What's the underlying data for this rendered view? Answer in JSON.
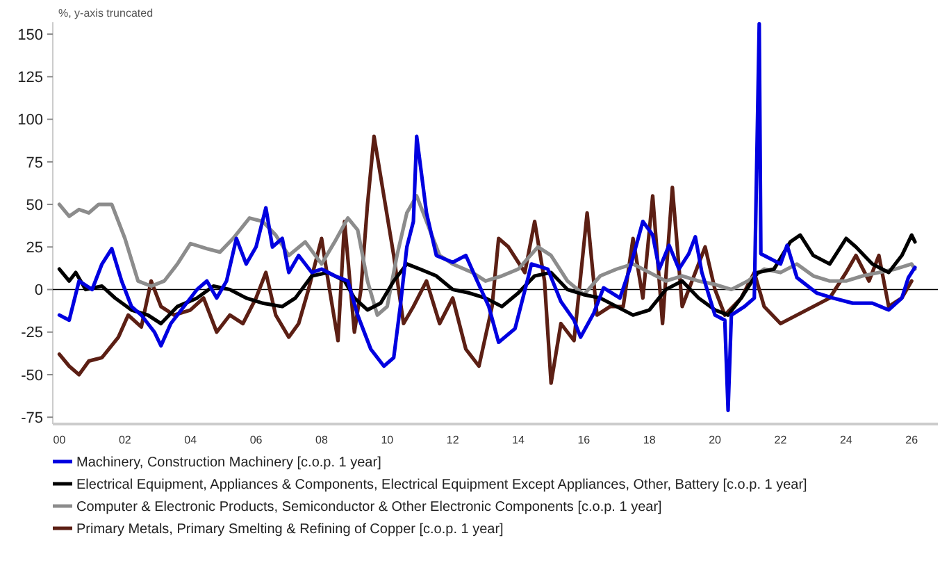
{
  "chart_data": {
    "type": "line",
    "ylabel": "%, y-axis truncated",
    "xlim": [
      1999.8,
      2026.8
    ],
    "ylim": [
      -79,
      157
    ],
    "xticks": [
      {
        "value": 2000,
        "label": "00"
      },
      {
        "value": 2002,
        "label": "02"
      },
      {
        "value": 2004,
        "label": "04"
      },
      {
        "value": 2006,
        "label": "06"
      },
      {
        "value": 2008,
        "label": "08"
      },
      {
        "value": 2010,
        "label": "10"
      },
      {
        "value": 2012,
        "label": "12"
      },
      {
        "value": 2014,
        "label": "14"
      },
      {
        "value": 2016,
        "label": "16"
      },
      {
        "value": 2018,
        "label": "18"
      },
      {
        "value": 2020,
        "label": "20"
      },
      {
        "value": 2022,
        "label": "22"
      },
      {
        "value": 2024,
        "label": "24"
      },
      {
        "value": 2026,
        "label": "26"
      }
    ],
    "yticks": [
      -75,
      -50,
      -25,
      0,
      25,
      50,
      75,
      100,
      125,
      150
    ],
    "grid": false,
    "legend": "bottom",
    "line_style": "solid",
    "ref_lines": [
      {
        "axis": "y",
        "value": 0,
        "color": "#000000"
      }
    ],
    "series": [
      {
        "name": "Primary Metals, Primary Smelting & Refining of Copper [c.o.p. 1 year]",
        "color": "#5c1f14",
        "x": [
          2000,
          2000.3,
          2000.6,
          2000.9,
          2001.3,
          2001.8,
          2002.1,
          2002.5,
          2002.8,
          2003.1,
          2003.5,
          2004,
          2004.4,
          2004.8,
          2005.2,
          2005.6,
          2006,
          2006.3,
          2006.6,
          2007,
          2007.3,
          2007.6,
          2008,
          2008.2,
          2008.5,
          2008.7,
          2009,
          2009.2,
          2009.4,
          2009.6,
          2009.9,
          2010.2,
          2010.5,
          2010.8,
          2011.2,
          2011.6,
          2012,
          2012.4,
          2012.8,
          2013.2,
          2013.4,
          2013.7,
          2014.2,
          2014.5,
          2014.8,
          2015,
          2015.3,
          2015.7,
          2016.1,
          2016.4,
          2016.8,
          2017.2,
          2017.5,
          2017.8,
          2018.1,
          2018.4,
          2018.7,
          2019,
          2019.3,
          2019.7,
          2020,
          2020.3,
          2020.8,
          2021.2,
          2021.5,
          2022,
          2022.5,
          2023,
          2023.5,
          2024,
          2024.3,
          2024.7,
          2025,
          2025.3,
          2025.7,
          2026
        ],
        "values": [
          -38,
          -45,
          -50,
          -42,
          -40,
          -28,
          -15,
          -22,
          5,
          -10,
          -15,
          -12,
          -5,
          -25,
          -15,
          -20,
          -5,
          10,
          -15,
          -28,
          -20,
          0,
          30,
          5,
          -30,
          40,
          -25,
          0,
          50,
          90,
          55,
          20,
          -20,
          -10,
          5,
          -20,
          -5,
          -35,
          -45,
          -10,
          30,
          25,
          10,
          40,
          5,
          -55,
          -20,
          -30,
          45,
          -15,
          -10,
          -10,
          30,
          -5,
          55,
          -20,
          60,
          -10,
          5,
          25,
          0,
          -15,
          -5,
          10,
          -10,
          -20,
          -15,
          -10,
          -5,
          10,
          20,
          5,
          20,
          -10,
          -5,
          5
        ]
      },
      {
        "name": "Computer & Electronic Products, Semiconductor & Other Electronic Components [c.o.p. 1 year]",
        "color": "#8c8c8c",
        "x": [
          2000,
          2000.3,
          2000.6,
          2000.9,
          2001.2,
          2001.6,
          2002,
          2002.4,
          2002.8,
          2003.2,
          2003.6,
          2004,
          2004.5,
          2004.9,
          2005.3,
          2005.8,
          2006.2,
          2006.6,
          2007,
          2007.5,
          2008,
          2008.4,
          2008.8,
          2009.1,
          2009.4,
          2009.7,
          2010,
          2010.3,
          2010.6,
          2010.9,
          2011.2,
          2011.6,
          2012,
          2012.6,
          2013,
          2013.5,
          2014,
          2014.6,
          2015,
          2015.5,
          2016,
          2016.5,
          2017,
          2017.5,
          2018,
          2018.5,
          2019,
          2019.5,
          2020,
          2020.5,
          2021,
          2021.5,
          2022,
          2022.5,
          2023,
          2023.5,
          2024,
          2024.5,
          2025,
          2025.5,
          2026,
          2026.1
        ],
        "values": [
          50,
          43,
          47,
          45,
          50,
          50,
          30,
          5,
          2,
          5,
          15,
          27,
          24,
          22,
          30,
          42,
          40,
          32,
          20,
          28,
          15,
          28,
          42,
          35,
          5,
          -15,
          -10,
          20,
          45,
          55,
          40,
          20,
          15,
          10,
          5,
          8,
          12,
          25,
          20,
          5,
          -3,
          8,
          12,
          15,
          10,
          5,
          8,
          5,
          3,
          0,
          5,
          12,
          10,
          15,
          8,
          5,
          5,
          8,
          10,
          12,
          15,
          12
        ]
      },
      {
        "name": "Electrical Equipment, Appliances & Components, Electrical Equipment Except Appliances, Other, Battery [c.o.p. 1 year]",
        "color": "#000000",
        "x": [
          2000,
          2000.3,
          2000.5,
          2000.8,
          2001.3,
          2001.7,
          2002.2,
          2002.7,
          2003.1,
          2003.6,
          2004.2,
          2004.7,
          2005.2,
          2005.7,
          2006.2,
          2006.8,
          2007.2,
          2007.7,
          2008.2,
          2008.7,
          2009,
          2009.4,
          2009.8,
          2010.2,
          2010.6,
          2011,
          2011.5,
          2012,
          2012.5,
          2013,
          2013.5,
          2014,
          2014.5,
          2015,
          2015.5,
          2016,
          2016.5,
          2017,
          2017.5,
          2018,
          2018.5,
          2019,
          2019.5,
          2020,
          2020.4,
          2020.8,
          2021.3,
          2021.8,
          2022.3,
          2022.6,
          2023,
          2023.5,
          2024,
          2024.3,
          2024.8,
          2025.3,
          2025.7,
          2026,
          2026.1
        ],
        "values": [
          12,
          5,
          10,
          0,
          2,
          -5,
          -12,
          -15,
          -20,
          -10,
          -5,
          2,
          0,
          -5,
          -8,
          -10,
          -5,
          8,
          10,
          5,
          -5,
          -12,
          -8,
          5,
          15,
          12,
          8,
          0,
          -2,
          -5,
          -10,
          -2,
          8,
          10,
          0,
          -3,
          -5,
          -10,
          -15,
          -12,
          0,
          5,
          -5,
          -12,
          -15,
          -5,
          10,
          12,
          28,
          32,
          20,
          15,
          30,
          25,
          15,
          10,
          20,
          32,
          28
        ]
      },
      {
        "name": "Machinery, Construction Machinery [c.o.p. 1 year]",
        "color": "#0000e0",
        "x": [
          2000,
          2000.3,
          2000.6,
          2001,
          2001.3,
          2001.6,
          2001.9,
          2002.2,
          2002.5,
          2002.9,
          2003.1,
          2003.4,
          2003.8,
          2004.2,
          2004.5,
          2004.8,
          2005.1,
          2005.4,
          2005.7,
          2006,
          2006.3,
          2006.5,
          2006.8,
          2007,
          2007.3,
          2007.7,
          2008,
          2008.4,
          2008.8,
          2009.1,
          2009.5,
          2009.9,
          2010.2,
          2010.4,
          2010.6,
          2010.8,
          2010.9,
          2011.2,
          2011.5,
          2012,
          2012.4,
          2012.7,
          2013.1,
          2013.4,
          2013.9,
          2014.3,
          2014.4,
          2014.9,
          2015.3,
          2015.7,
          2015.9,
          2016.3,
          2016.6,
          2017.1,
          2017.4,
          2017.8,
          2018.1,
          2018.3,
          2018.6,
          2018.9,
          2019.2,
          2019.4,
          2019.6,
          2020,
          2020.3,
          2020.4,
          2020.5,
          2020.9,
          2021.2,
          2021.35,
          2021.4,
          2022,
          2022.2,
          2022.5,
          2023.1,
          2023.6,
          2024.2,
          2024.8,
          2025.3,
          2025.7,
          2025.9,
          2026.1
        ],
        "values": [
          -15,
          -18,
          5,
          0,
          15,
          24,
          5,
          -10,
          -15,
          -25,
          -33,
          -20,
          -10,
          0,
          5,
          -5,
          5,
          30,
          15,
          25,
          48,
          25,
          30,
          10,
          20,
          10,
          12,
          8,
          5,
          -15,
          -35,
          -45,
          -40,
          -10,
          25,
          40,
          90,
          45,
          20,
          16,
          20,
          7,
          -10,
          -31,
          -23,
          7,
          15,
          12,
          -7,
          -18,
          -28,
          -14,
          1,
          -5,
          12,
          40,
          32,
          12,
          26,
          12,
          21,
          31,
          10,
          -15,
          -18,
          -71,
          -15,
          -10,
          -5,
          156,
          21,
          15,
          26,
          7,
          -2,
          -5,
          -8,
          -8,
          -12,
          -5,
          7,
          13
        ]
      }
    ]
  }
}
